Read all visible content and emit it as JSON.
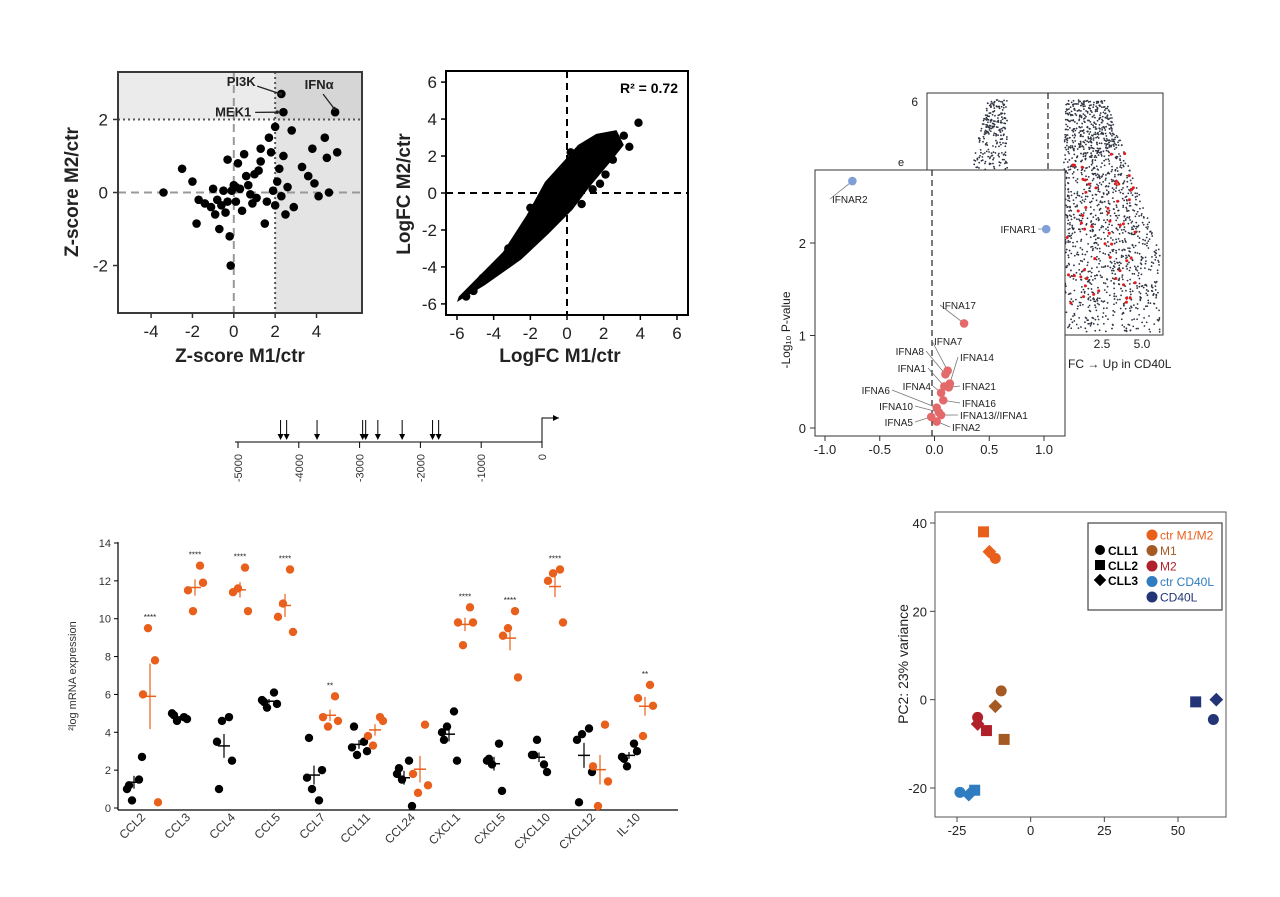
{
  "chart_data": [
    {
      "id": "zscore",
      "type": "scatter",
      "xlabel": "Z-score M1/ctr",
      "ylabel": "Z-score M2/ctr",
      "xlim": [
        -5.6,
        6.2
      ],
      "ylim": [
        -3.3,
        3.3
      ],
      "xticks": [
        -4,
        -2,
        0,
        2,
        4
      ],
      "yticks": [
        -2,
        0,
        2
      ],
      "reference_lines": {
        "x_dashed": 0,
        "y_dashed": 0,
        "x_dotted": 2,
        "y_dotted": 2
      },
      "annotations": [
        {
          "text": "PI3K",
          "x": 2.1,
          "y": 2.75
        },
        {
          "text": "MEK1",
          "x": 2.0,
          "y": 2.25
        },
        {
          "text": "IFNα",
          "x": 4.9,
          "y": 2.2
        }
      ],
      "points": [
        [
          -3.4,
          0
        ],
        [
          -2.5,
          0.65
        ],
        [
          -2.0,
          0.3
        ],
        [
          -1.8,
          -0.85
        ],
        [
          -1.7,
          -0.2
        ],
        [
          -1.4,
          -0.3
        ],
        [
          -1.1,
          -0.4
        ],
        [
          -1.0,
          0.1
        ],
        [
          -0.9,
          -0.6
        ],
        [
          -0.8,
          -0.2
        ],
        [
          -0.7,
          -1.0
        ],
        [
          -0.6,
          -0.35
        ],
        [
          -0.5,
          0.05
        ],
        [
          -0.4,
          -0.55
        ],
        [
          -0.3,
          0.9
        ],
        [
          -0.3,
          -0.25
        ],
        [
          -0.2,
          -1.2
        ],
        [
          -0.1,
          0.05
        ],
        [
          0,
          0.2
        ],
        [
          0.1,
          0.15
        ],
        [
          0.1,
          -0.25
        ],
        [
          0.2,
          0.8
        ],
        [
          0.3,
          0.1
        ],
        [
          0.4,
          -0.5
        ],
        [
          0.5,
          1.05
        ],
        [
          0.6,
          0.45
        ],
        [
          0.7,
          0.2
        ],
        [
          0.8,
          -0.05
        ],
        [
          0.9,
          -0.3
        ],
        [
          1.0,
          0.5
        ],
        [
          1.1,
          -0.15
        ],
        [
          1.2,
          0.6
        ],
        [
          1.3,
          1.2
        ],
        [
          1.3,
          0.85
        ],
        [
          1.5,
          -0.85
        ],
        [
          1.6,
          -0.25
        ],
        [
          1.7,
          1.5
        ],
        [
          1.8,
          1.1
        ],
        [
          1.9,
          0.05
        ],
        [
          2.0,
          1.8
        ],
        [
          2.0,
          -0.35
        ],
        [
          2.1,
          0.3
        ],
        [
          2.2,
          0.65
        ],
        [
          2.3,
          -0.1
        ],
        [
          2.4,
          1.0
        ],
        [
          2.5,
          -0.6
        ],
        [
          2.6,
          0.15
        ],
        [
          2.8,
          1.7
        ],
        [
          2.9,
          -0.4
        ],
        [
          3.3,
          0.7
        ],
        [
          3.6,
          0.45
        ],
        [
          3.8,
          1.2
        ],
        [
          3.9,
          0.25
        ],
        [
          4.1,
          -0.1
        ],
        [
          4.4,
          1.5
        ],
        [
          4.5,
          0.95
        ],
        [
          4.6,
          0
        ],
        [
          4.9,
          2.2
        ],
        [
          5.0,
          1.1
        ],
        [
          -0.15,
          -2.0
        ],
        [
          2.3,
          2.7
        ],
        [
          2.4,
          2.2
        ]
      ]
    },
    {
      "id": "logfc",
      "type": "scatter",
      "xlabel": "LogFC M1/ctr",
      "ylabel": "LogFC M2/ctr",
      "xlim": [
        -6.6,
        6.6
      ],
      "ylim": [
        -6.6,
        6.6
      ],
      "xticks": [
        -6,
        -4,
        -2,
        0,
        2,
        4,
        6
      ],
      "yticks": [
        -6,
        -4,
        -2,
        0,
        2,
        4,
        6
      ],
      "annotation": "R² = 0.72"
    },
    {
      "id": "volcano_back",
      "type": "scatter",
      "visible_yticks": [
        6
      ],
      "visible_xticks": [
        "2.5",
        "5.0"
      ],
      "xlabel_fragment": "FC → Up in CD40L",
      "ylabel_fragment": "e"
    },
    {
      "id": "volcano_ifn",
      "type": "scatter",
      "ylabel": "-Log₁₀ P-value",
      "xlim": [
        -1.2,
        1.2
      ],
      "ylim": [
        -0.05,
        2.85
      ],
      "xticks": [
        "-1.0",
        "-0.5",
        "0.0",
        "0.5",
        "1.0"
      ],
      "yticks": [
        0,
        1,
        2
      ],
      "points": [
        {
          "label": "IFNAR2",
          "x": -0.75,
          "y": 2.67,
          "group": "blue"
        },
        {
          "label": "IFNAR1",
          "x": 1.02,
          "y": 2.15,
          "group": "blue"
        },
        {
          "label": "IFNA17",
          "x": 0.27,
          "y": 1.13,
          "group": "red"
        },
        {
          "label": "IFNA7",
          "x": 0.12,
          "y": 0.62,
          "group": "red"
        },
        {
          "label": "IFNA8",
          "x": 0.1,
          "y": 0.58,
          "group": "red"
        },
        {
          "label": "IFNA14",
          "x": 0.14,
          "y": 0.48,
          "group": "red"
        },
        {
          "label": "IFNA1",
          "x": 0.09,
          "y": 0.45,
          "group": "red"
        },
        {
          "label": "IFNA21",
          "x": 0.13,
          "y": 0.44,
          "group": "red"
        },
        {
          "label": "IFNA4",
          "x": 0.06,
          "y": 0.38,
          "group": "red"
        },
        {
          "label": "IFNA16",
          "x": 0.08,
          "y": 0.3,
          "group": "red"
        },
        {
          "label": "IFNA6",
          "x": 0.02,
          "y": 0.22,
          "group": "red"
        },
        {
          "label": "IFNA10",
          "x": 0.04,
          "y": 0.17,
          "group": "red"
        },
        {
          "label": "IFNA13//IFNA1",
          "x": 0.06,
          "y": 0.14,
          "group": "red"
        },
        {
          "label": "IFNA5",
          "x": -0.03,
          "y": 0.12,
          "group": "red"
        },
        {
          "label": "IFNA2",
          "x": 0.02,
          "y": 0.07,
          "group": "red"
        }
      ]
    },
    {
      "id": "promoter",
      "type": "scale",
      "ticks": [
        -5000,
        -4000,
        -3000,
        -2000,
        -1000,
        0
      ],
      "arrow_positions": [
        -4300,
        -4200,
        -3700,
        -2950,
        -2900,
        -2700,
        -2300,
        -1800,
        -1700
      ]
    },
    {
      "id": "mrna",
      "type": "scatter",
      "ylabel": "²log mRNA expression",
      "ylim": [
        0,
        14
      ],
      "yticks": [
        0,
        2,
        4,
        6,
        8,
        10,
        12,
        14
      ],
      "categories": [
        "CCL2",
        "CCL3",
        "CCL4",
        "CCL5",
        "CCL7",
        "CCL11",
        "CCL24",
        "CXCL1",
        "CXCL5",
        "CXCL10",
        "CXCL12",
        "IL-10"
      ],
      "significance": [
        "****",
        "****",
        "****",
        "****",
        "**",
        "",
        "",
        "****",
        "****",
        "****",
        "",
        "**"
      ],
      "series": [
        {
          "color": "#000000",
          "values": [
            [
              1.0,
              1.5,
              0.4,
              2.7,
              1.2
            ],
            [
              5.0,
              4.8,
              4.6,
              4.7,
              4.9
            ],
            [
              3.5,
              4.8,
              4.6,
              2.5,
              1.0
            ],
            [
              5.7,
              6.1,
              5.3,
              5.5,
              5.6
            ],
            [
              1.6,
              0.4,
              1.0,
              2.0,
              3.7
            ],
            [
              3.2,
              3.5,
              2.8,
              3.0,
              4.3
            ],
            [
              1.8,
              2.5,
              1.5,
              0.1,
              2.1
            ],
            [
              4.0,
              5.1,
              4.3,
              2.5,
              3.6
            ],
            [
              2.5,
              3.4,
              2.3,
              0.9,
              2.6
            ],
            [
              2.8,
              2.3,
              3.6,
              1.9,
              2.8
            ],
            [
              3.6,
              4.2,
              3.9,
              1.9,
              0.3
            ],
            [
              2.7,
              3.4,
              2.2,
              3.0,
              2.6
            ]
          ]
        },
        {
          "color": "#e8601c",
          "values": [
            [
              6.0,
              7.8,
              9.5,
              0.3
            ],
            [
              11.5,
              12.8,
              10.4,
              11.9
            ],
            [
              11.4,
              12.7,
              11.6,
              10.4
            ],
            [
              10.1,
              12.6,
              10.8,
              9.3
            ],
            [
              4.8,
              5.9,
              4.3,
              4.6
            ],
            [
              3.8,
              4.8,
              3.3,
              4.6
            ],
            [
              1.8,
              4.4,
              0.8,
              1.2
            ],
            [
              9.8,
              10.6,
              8.6,
              9.8
            ],
            [
              9.1,
              10.4,
              9.5,
              6.9
            ],
            [
              12.0,
              12.6,
              12.4,
              9.8
            ],
            [
              2.2,
              4.4,
              0.1,
              1.4
            ],
            [
              5.8,
              6.5,
              3.8,
              5.4
            ]
          ]
        }
      ]
    },
    {
      "id": "pca",
      "type": "scatter",
      "ylabel": "PC2: 23% variance",
      "xlim": [
        -30,
        66
      ],
      "ylim": [
        -24,
        41
      ],
      "xticks": [
        -25,
        0,
        25,
        50
      ],
      "yticks": [
        -20,
        0,
        20,
        40
      ],
      "legend_shapes": [
        {
          "label": "CLL1",
          "shape": "circle"
        },
        {
          "label": "CLL2",
          "shape": "square"
        },
        {
          "label": "CLL3",
          "shape": "diamond"
        }
      ],
      "legend_groups": [
        {
          "label": "ctr M1/M2",
          "color": "#e8601c"
        },
        {
          "label": "M1",
          "color": "#a55a24"
        },
        {
          "label": "M2",
          "color": "#b0202a"
        },
        {
          "label": "ctr CD40L",
          "color": "#2f7cc0"
        },
        {
          "label": "CD40L",
          "color": "#233577"
        }
      ],
      "points": [
        {
          "x": -12,
          "y": 32,
          "shape": "circle",
          "color": "#e8601c"
        },
        {
          "x": -16,
          "y": 38,
          "shape": "square",
          "color": "#e8601c"
        },
        {
          "x": -14,
          "y": 33.5,
          "shape": "diamond",
          "color": "#e8601c"
        },
        {
          "x": -10,
          "y": 2,
          "shape": "circle",
          "color": "#a55a24"
        },
        {
          "x": -9,
          "y": -9,
          "shape": "square",
          "color": "#a55a24"
        },
        {
          "x": -12,
          "y": -1.5,
          "shape": "diamond",
          "color": "#a55a24"
        },
        {
          "x": -18,
          "y": -4,
          "shape": "circle",
          "color": "#b0202a"
        },
        {
          "x": -15,
          "y": -7,
          "shape": "square",
          "color": "#b0202a"
        },
        {
          "x": -18,
          "y": -5.5,
          "shape": "diamond",
          "color": "#b0202a"
        },
        {
          "x": -24,
          "y": -21,
          "shape": "circle",
          "color": "#2f7cc0"
        },
        {
          "x": -19,
          "y": -20.5,
          "shape": "square",
          "color": "#2f7cc0"
        },
        {
          "x": -21,
          "y": -21.5,
          "shape": "diamond",
          "color": "#2f7cc0"
        },
        {
          "x": 62,
          "y": -4.5,
          "shape": "circle",
          "color": "#233577"
        },
        {
          "x": 56,
          "y": -0.5,
          "shape": "square",
          "color": "#233577"
        },
        {
          "x": 63,
          "y": 0,
          "shape": "diamond",
          "color": "#233577"
        }
      ]
    }
  ]
}
